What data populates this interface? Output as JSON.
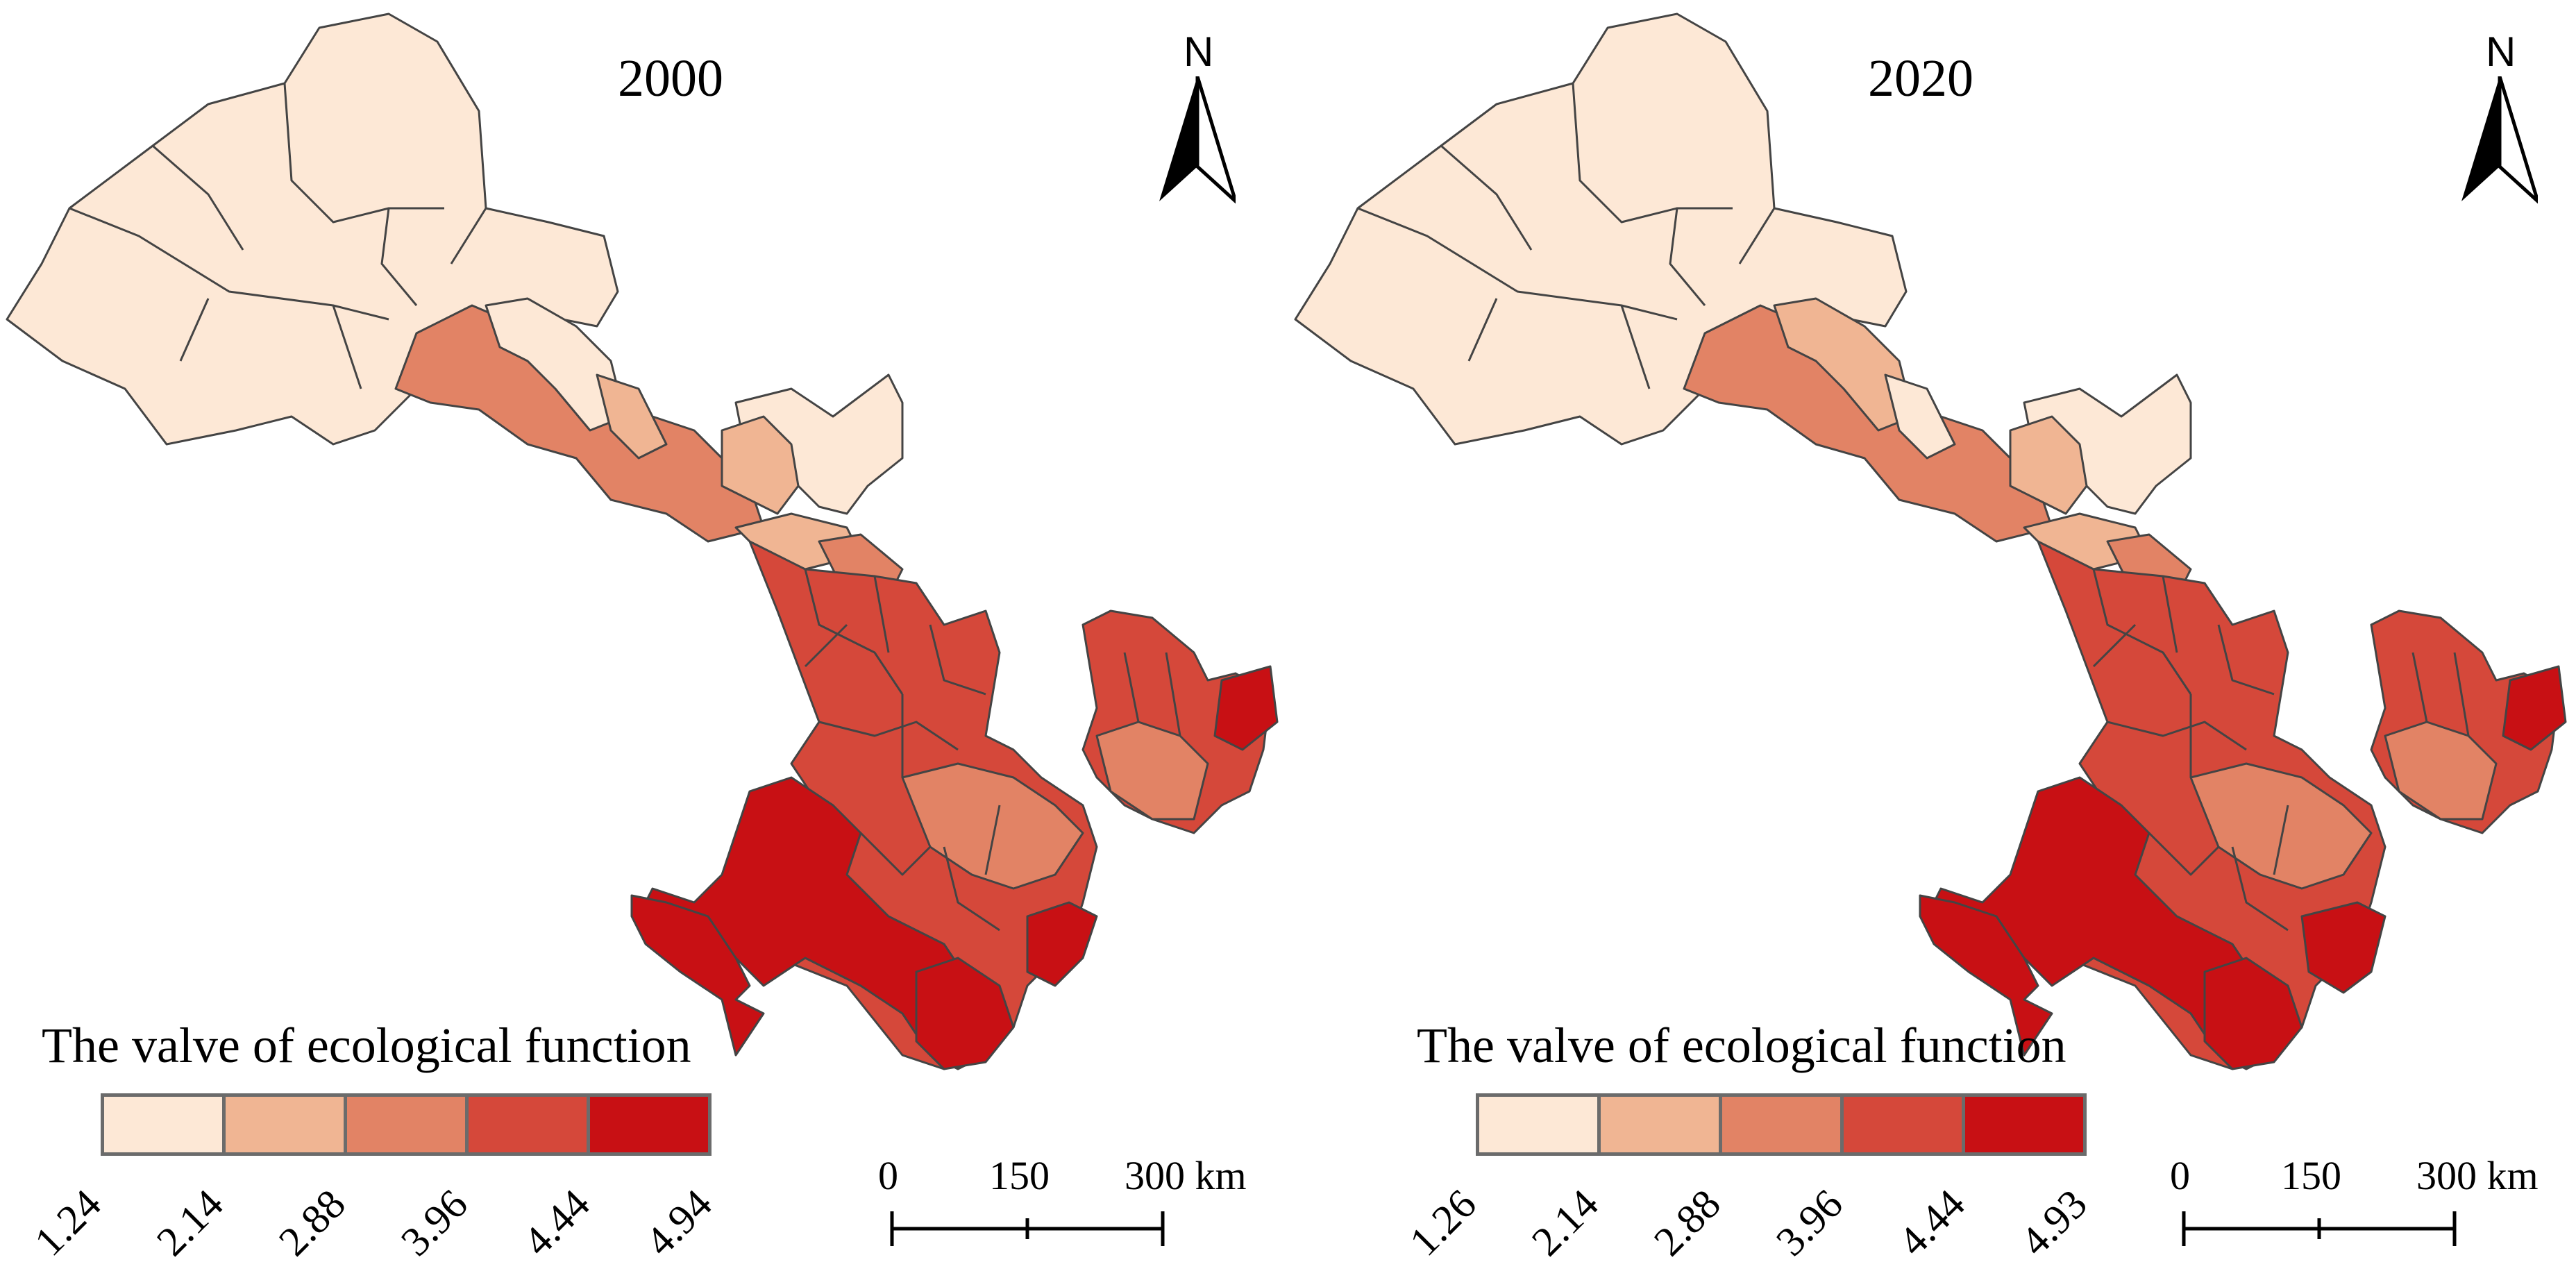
{
  "panels": [
    {
      "year": "2000",
      "legend_title": "The valve of ecological function",
      "legend_breaks": [
        "1.24",
        "2.14",
        "2.88",
        "3.96",
        "4.44",
        "4.94"
      ],
      "north_label": "N",
      "scale_labels": [
        "0",
        "150",
        "300 km"
      ]
    },
    {
      "year": "2020",
      "legend_title": "The valve of ecological function",
      "legend_breaks": [
        "1.26",
        "2.14",
        "2.88",
        "3.96",
        "4.44",
        "4.93"
      ],
      "north_label": "N",
      "scale_labels": [
        "0",
        "150",
        "300 km"
      ]
    }
  ],
  "colors": {
    "class1": "#fde8d6",
    "class2": "#f0b593",
    "class3": "#e28365",
    "class4": "#d5483a",
    "class5": "#c81014",
    "border": "#444444"
  }
}
